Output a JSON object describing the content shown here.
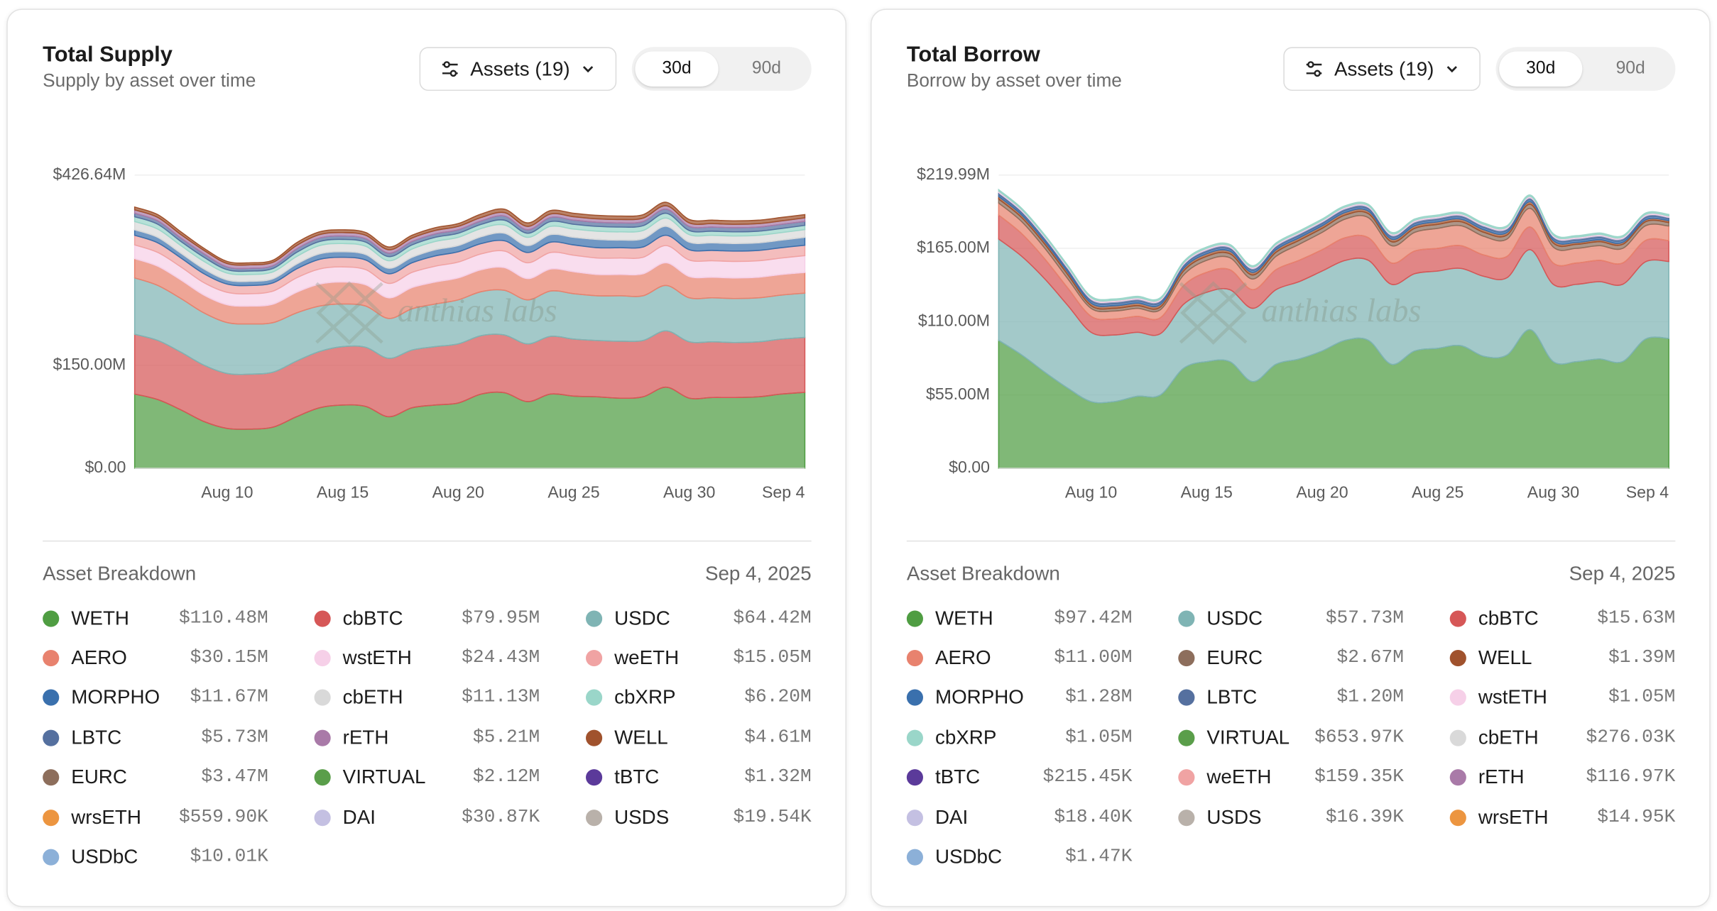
{
  "panels": [
    {
      "title": "Total Supply",
      "subtitle": "Supply by asset over time",
      "assets_button": "Assets (19)",
      "ranges": [
        "30d",
        "90d"
      ],
      "watermark": "anthias labs",
      "breakdown": {
        "title": "Asset Breakdown",
        "date": "Sep 4, 2025",
        "items": [
          {
            "name": "WETH",
            "color": "#4f9d42",
            "value": "$110.48M"
          },
          {
            "name": "cbBTC",
            "color": "#d65757",
            "value": "$79.95M"
          },
          {
            "name": "USDC",
            "color": "#7fb4b4",
            "value": "$64.42M"
          },
          {
            "name": "AERO",
            "color": "#e8826e",
            "value": "$30.15M"
          },
          {
            "name": "wstETH",
            "color": "#f6d0e8",
            "value": "$24.43M"
          },
          {
            "name": "weETH",
            "color": "#f0a3a3",
            "value": "$15.05M"
          },
          {
            "name": "MORPHO",
            "color": "#3a70ad",
            "value": "$11.67M"
          },
          {
            "name": "cbETH",
            "color": "#d9d9d9",
            "value": "$11.13M"
          },
          {
            "name": "cbXRP",
            "color": "#9ad6c9",
            "value": "$6.20M"
          },
          {
            "name": "LBTC",
            "color": "#55709f",
            "value": "$5.73M"
          },
          {
            "name": "rETH",
            "color": "#a97aa8",
            "value": "$5.21M"
          },
          {
            "name": "WELL",
            "color": "#a0522d",
            "value": "$4.61M"
          },
          {
            "name": "EURC",
            "color": "#8d6e5c",
            "value": "$3.47M"
          },
          {
            "name": "VIRTUAL",
            "color": "#5a9e4a",
            "value": "$2.12M"
          },
          {
            "name": "tBTC",
            "color": "#5b3a9a",
            "value": "$1.32M"
          },
          {
            "name": "wrsETH",
            "color": "#ec9540",
            "value": "$559.90K"
          },
          {
            "name": "DAI",
            "color": "#c4c0e2",
            "value": "$30.87K"
          },
          {
            "name": "USDS",
            "color": "#b9b1aa",
            "value": "$19.54K"
          },
          {
            "name": "USDbC",
            "color": "#8cb0d8",
            "value": "$10.01K"
          }
        ]
      }
    },
    {
      "title": "Total Borrow",
      "subtitle": "Borrow by asset over time",
      "assets_button": "Assets (19)",
      "ranges": [
        "30d",
        "90d"
      ],
      "watermark": "anthias labs",
      "breakdown": {
        "title": "Asset Breakdown",
        "date": "Sep 4, 2025",
        "items": [
          {
            "name": "WETH",
            "color": "#4f9d42",
            "value": "$97.42M"
          },
          {
            "name": "USDC",
            "color": "#7fb4b4",
            "value": "$57.73M"
          },
          {
            "name": "cbBTC",
            "color": "#d65757",
            "value": "$15.63M"
          },
          {
            "name": "AERO",
            "color": "#e8826e",
            "value": "$11.00M"
          },
          {
            "name": "EURC",
            "color": "#8d6e5c",
            "value": "$2.67M"
          },
          {
            "name": "WELL",
            "color": "#a0522d",
            "value": "$1.39M"
          },
          {
            "name": "MORPHO",
            "color": "#3a70ad",
            "value": "$1.28M"
          },
          {
            "name": "LBTC",
            "color": "#55709f",
            "value": "$1.20M"
          },
          {
            "name": "wstETH",
            "color": "#f6d0e8",
            "value": "$1.05M"
          },
          {
            "name": "cbXRP",
            "color": "#9ad6c9",
            "value": "$1.05M"
          },
          {
            "name": "VIRTUAL",
            "color": "#5a9e4a",
            "value": "$653.97K"
          },
          {
            "name": "cbETH",
            "color": "#d9d9d9",
            "value": "$276.03K"
          },
          {
            "name": "tBTC",
            "color": "#5b3a9a",
            "value": "$215.45K"
          },
          {
            "name": "weETH",
            "color": "#f0a3a3",
            "value": "$159.35K"
          },
          {
            "name": "rETH",
            "color": "#a97aa8",
            "value": "$116.97K"
          },
          {
            "name": "DAI",
            "color": "#c4c0e2",
            "value": "$18.40K"
          },
          {
            "name": "USDS",
            "color": "#b9b1aa",
            "value": "$16.39K"
          },
          {
            "name": "wrsETH",
            "color": "#ec9540",
            "value": "$14.95K"
          },
          {
            "name": "USDbC",
            "color": "#8cb0d8",
            "value": "$1.47K"
          }
        ]
      }
    }
  ],
  "chart_data": [
    {
      "type": "area",
      "stacked": true,
      "grid": true,
      "categories": [
        null,
        null,
        null,
        null,
        "Aug 10",
        null,
        null,
        null,
        null,
        "Aug 15",
        null,
        null,
        null,
        null,
        "Aug 20",
        null,
        null,
        null,
        null,
        "Aug 25",
        null,
        null,
        null,
        null,
        "Aug 30",
        null,
        null,
        null,
        null,
        "Sep 4"
      ],
      "ylim": [
        0,
        426.64
      ],
      "yticks": [
        {
          "value": 0,
          "label": "$0.00"
        },
        {
          "value": 150,
          "label": "$150.00M"
        },
        {
          "value": 426.64,
          "label": "$426.64M"
        }
      ],
      "series": [
        {
          "color": "#4f9d42",
          "values": [
            108,
            100,
            85,
            68,
            58,
            57,
            60,
            75,
            88,
            92,
            90,
            75,
            88,
            92,
            95,
            108,
            110,
            97,
            108,
            105,
            104,
            102,
            104,
            118,
            102,
            103,
            103,
            104,
            108,
            110.48
          ]
        },
        {
          "color": "#d65757",
          "values": [
            87,
            86,
            84,
            82,
            80,
            80,
            80,
            81,
            82,
            85,
            86,
            85,
            84,
            85,
            86,
            85,
            84,
            84,
            84,
            83,
            82,
            83,
            82,
            82,
            82,
            81,
            80,
            80,
            80,
            79.95
          ]
        },
        {
          "color": "#7fb4b4",
          "values": [
            82,
            80,
            78,
            76,
            74,
            73,
            72,
            70,
            66,
            62,
            60,
            58,
            60,
            62,
            64,
            64,
            65,
            64,
            66,
            66,
            65,
            66,
            65,
            66,
            64,
            64,
            64,
            64,
            64,
            64.42
          ]
        },
        {
          "color": "#e8826e",
          "values": [
            28,
            28,
            27,
            26,
            26,
            26,
            27,
            30,
            32,
            32,
            31,
            30,
            31,
            32,
            32,
            32,
            33,
            31,
            32,
            32,
            31,
            31,
            32,
            33,
            31,
            30,
            30,
            30,
            30,
            30.15
          ]
        },
        {
          "color": "#f6d0e8",
          "values": [
            20,
            20,
            19,
            18,
            18,
            18,
            19,
            21,
            22,
            22,
            22,
            21,
            22,
            23,
            23,
            23,
            24,
            23,
            24,
            24,
            24,
            24,
            24,
            25,
            24,
            24,
            24,
            24,
            24,
            24.43
          ]
        },
        {
          "color": "#f0a3a3",
          "values": [
            14,
            14,
            13,
            13,
            12,
            12,
            12,
            13,
            14,
            14,
            14,
            14,
            14,
            15,
            15,
            15,
            15,
            15,
            15,
            15,
            15,
            15,
            15,
            15,
            15,
            15,
            15,
            15,
            15,
            15.05
          ]
        },
        {
          "color": "#3a70ad",
          "values": [
            8,
            8,
            7,
            7,
            6,
            6,
            6,
            7,
            8,
            8,
            8,
            8,
            8,
            9,
            9,
            10,
            11,
            10,
            11,
            11,
            12,
            11,
            12,
            13,
            11,
            11,
            11,
            11,
            11,
            11.67
          ]
        },
        {
          "color": "#d9d9d9",
          "values": [
            12,
            12,
            11,
            11,
            10,
            10,
            10,
            11,
            12,
            12,
            12,
            11,
            12,
            12,
            12,
            12,
            12,
            12,
            12,
            12,
            12,
            12,
            12,
            12,
            11,
            11,
            11,
            11,
            11,
            11.13
          ]
        },
        {
          "color": "#9ad6c9",
          "values": [
            7,
            7,
            6,
            6,
            5,
            5,
            5,
            6,
            6,
            6,
            6,
            6,
            6,
            6,
            6,
            6,
            7,
            6,
            7,
            7,
            7,
            7,
            7,
            7,
            6,
            6,
            6,
            6,
            6,
            6.2
          ]
        },
        {
          "color": "#55709f",
          "values": [
            5,
            5,
            5,
            5,
            4,
            4,
            4,
            5,
            5,
            5,
            5,
            5,
            5,
            5,
            5,
            5,
            6,
            5,
            6,
            6,
            6,
            6,
            6,
            6,
            6,
            6,
            6,
            6,
            6,
            5.73
          ]
        },
        {
          "color": "#a97aa8",
          "values": [
            5,
            5,
            5,
            5,
            5,
            5,
            5,
            5,
            5,
            5,
            5,
            5,
            5,
            5,
            5,
            5,
            5,
            5,
            5,
            5,
            5,
            5,
            5,
            5,
            5,
            5,
            5,
            5,
            5,
            5.21
          ]
        },
        {
          "color": "#a0522d",
          "values": [
            4,
            4,
            4,
            3,
            3,
            3,
            3,
            4,
            4,
            4,
            4,
            4,
            4,
            4,
            4,
            5,
            5,
            5,
            5,
            5,
            5,
            5,
            5,
            5,
            5,
            5,
            5,
            5,
            5,
            4.61
          ]
        }
      ]
    },
    {
      "type": "area",
      "stacked": true,
      "grid": true,
      "categories": [
        null,
        null,
        null,
        null,
        "Aug 10",
        null,
        null,
        null,
        null,
        "Aug 15",
        null,
        null,
        null,
        null,
        "Aug 20",
        null,
        null,
        null,
        null,
        "Aug 25",
        null,
        null,
        null,
        null,
        "Aug 30",
        null,
        null,
        null,
        null,
        "Sep 4"
      ],
      "ylim": [
        0,
        219.99
      ],
      "yticks": [
        {
          "value": 0,
          "label": "$0.00"
        },
        {
          "value": 55,
          "label": "$55.00M"
        },
        {
          "value": 110,
          "label": "$110.00M"
        },
        {
          "value": 165,
          "label": "$165.00M"
        },
        {
          "value": 219.99,
          "label": "$219.99M"
        }
      ],
      "series": [
        {
          "color": "#4f9d42",
          "values": [
            96,
            85,
            72,
            60,
            50,
            50,
            54,
            55,
            75,
            80,
            80,
            65,
            78,
            82,
            88,
            96,
            96,
            78,
            88,
            90,
            92,
            84,
            85,
            104,
            80,
            80,
            82,
            80,
            97,
            97.42
          ]
        },
        {
          "color": "#7fb4b4",
          "values": [
            76,
            74,
            70,
            62,
            52,
            50,
            48,
            46,
            48,
            52,
            54,
            55,
            56,
            58,
            60,
            60,
            60,
            60,
            58,
            58,
            58,
            60,
            58,
            60,
            58,
            58,
            58,
            58,
            58,
            57.73
          ]
        },
        {
          "color": "#d65757",
          "values": [
            18,
            17,
            15,
            13,
            12,
            12,
            12,
            12,
            14,
            15,
            15,
            14,
            15,
            16,
            16,
            17,
            17,
            16,
            17,
            17,
            17,
            16,
            16,
            17,
            16,
            16,
            16,
            16,
            16,
            15.63
          ]
        },
        {
          "color": "#e8826e",
          "values": [
            9,
            9,
            8,
            7,
            6,
            6,
            6,
            6,
            8,
            9,
            9,
            8,
            10,
            12,
            13,
            14,
            15,
            13,
            14,
            15,
            15,
            14,
            13,
            14,
            12,
            11,
            11,
            11,
            11,
            11
          ]
        },
        {
          "color": "#8d6e5c",
          "values": [
            3,
            3,
            3,
            3,
            2,
            2,
            2,
            2,
            3,
            3,
            3,
            3,
            3,
            3,
            3,
            3,
            3,
            3,
            3,
            3,
            3,
            3,
            3,
            3,
            3,
            3,
            3,
            3,
            3,
            2.67
          ]
        },
        {
          "color": "#a0522d",
          "values": [
            2,
            2,
            2,
            2,
            2,
            2,
            2,
            2,
            2,
            2,
            2,
            2,
            2,
            2,
            2,
            2,
            2,
            2,
            2,
            2,
            2,
            2,
            2,
            2,
            2,
            1.5,
            1.5,
            1.5,
            1.5,
            1.39
          ]
        },
        {
          "color": "#3a70ad",
          "values": [
            1.5,
            1.5,
            1.5,
            1.5,
            1.5,
            1.5,
            1.5,
            1.5,
            1.5,
            1.5,
            1.5,
            1.5,
            1.5,
            1.5,
            1.5,
            1.5,
            1.5,
            1.5,
            1.5,
            1.5,
            1.5,
            1.5,
            1.5,
            1.5,
            1.5,
            1.5,
            1.5,
            1.5,
            1.5,
            1.28
          ]
        },
        {
          "color": "#55709f",
          "values": [
            1.5,
            1.5,
            1.5,
            1.5,
            1.5,
            1.5,
            1.5,
            1.5,
            1.5,
            1.5,
            1.5,
            1.5,
            1.5,
            1.5,
            1.5,
            1.5,
            1.5,
            1.5,
            1.5,
            1.5,
            1.5,
            1.5,
            1.5,
            1.5,
            1.5,
            1.5,
            1.5,
            1.5,
            1.5,
            1.2
          ]
        },
        {
          "color": "#f6d0e8",
          "values": [
            1,
            1,
            1,
            1,
            1,
            1,
            1,
            1,
            1,
            1,
            1,
            1,
            1,
            1,
            1,
            1,
            1,
            1,
            1,
            1,
            1,
            1,
            1,
            1,
            1,
            1,
            1,
            1,
            1,
            1.05
          ]
        },
        {
          "color": "#9ad6c9",
          "values": [
            1,
            1,
            1,
            1,
            1,
            1,
            1,
            1,
            1,
            1,
            1,
            1,
            1,
            1,
            1,
            1,
            1,
            1,
            1,
            1,
            1,
            1,
            1,
            1,
            1,
            1,
            1,
            1,
            1,
            1.05
          ]
        }
      ]
    }
  ]
}
